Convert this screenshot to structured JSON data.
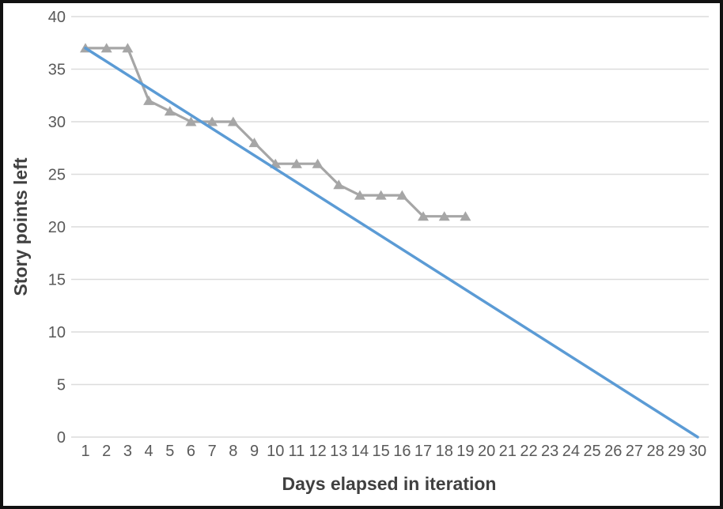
{
  "chart_data": {
    "type": "line",
    "title": "",
    "xlabel": "Days elapsed in iteration",
    "ylabel": "Story points left",
    "ylim": [
      0,
      40
    ],
    "yticks": [
      0,
      5,
      10,
      15,
      20,
      25,
      30,
      35,
      40
    ],
    "xticks": [
      1,
      2,
      3,
      4,
      5,
      6,
      7,
      8,
      9,
      10,
      11,
      12,
      13,
      14,
      15,
      16,
      17,
      18,
      19,
      20,
      21,
      22,
      23,
      24,
      25,
      26,
      27,
      28,
      29,
      30
    ],
    "grid": "horizontal-only",
    "legend": "none",
    "series": [
      {
        "id": "actual-burndown",
        "color": "#a6a6a6",
        "marker": "triangle",
        "line_width": 3.2,
        "x": [
          1,
          2,
          3,
          4,
          5,
          6,
          7,
          8,
          9,
          10,
          11,
          12,
          13,
          14,
          15,
          16,
          17,
          18,
          19
        ],
        "values": [
          37,
          37,
          37,
          32,
          31,
          30,
          30,
          30,
          28,
          26,
          26,
          26,
          24,
          23,
          23,
          23,
          21,
          21,
          21
        ]
      },
      {
        "id": "ideal-burndown",
        "color": "#5b9bd5",
        "marker": "none",
        "line_width": 3.5,
        "x": [
          1,
          30
        ],
        "values": [
          37,
          0
        ]
      }
    ]
  },
  "style_colors": {
    "frame_border": "#111111",
    "background": "#ffffff",
    "gridline": "#dcdcdc",
    "tick_text": "#595959",
    "title_text": "#404040"
  }
}
